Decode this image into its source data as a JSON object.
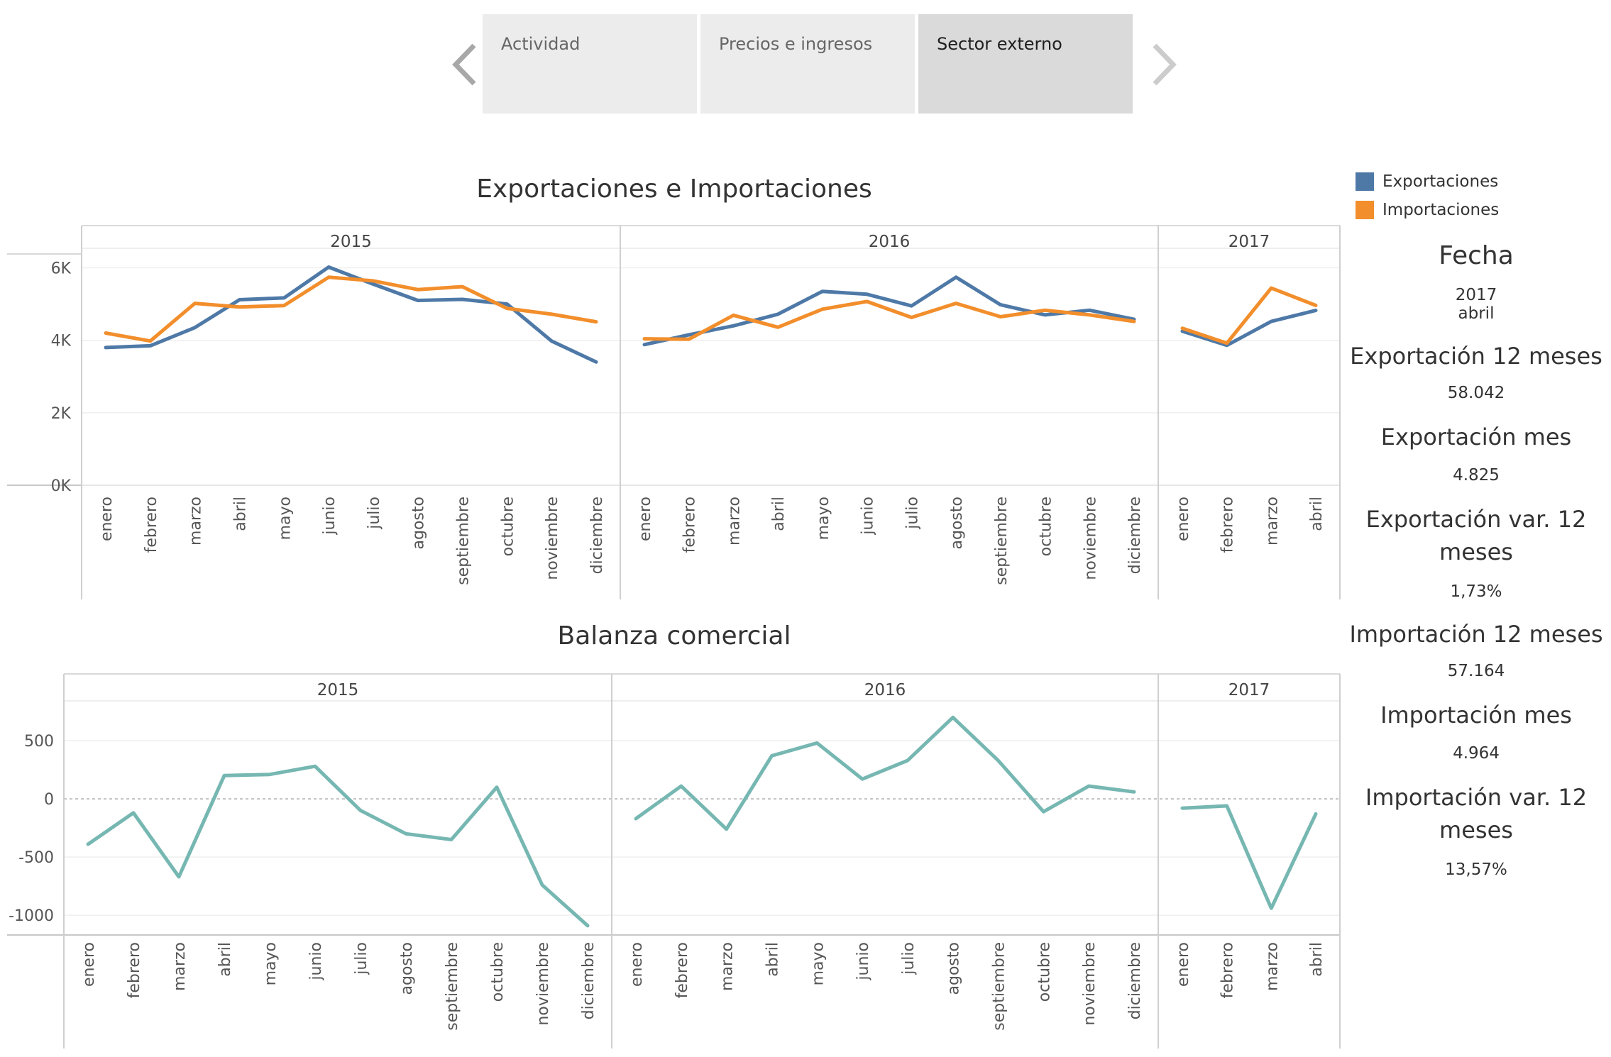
{
  "tabs": {
    "items": [
      {
        "label": "Actividad",
        "active": false
      },
      {
        "label": "Precios e ingresos",
        "active": false
      },
      {
        "label": "Sector externo",
        "active": true
      }
    ],
    "prev_icon": "chevron-left-icon",
    "next_icon": "chevron-right-icon"
  },
  "legend": {
    "items": [
      {
        "label": "Exportaciones",
        "color": "#4e79a7"
      },
      {
        "label": "Importaciones",
        "color": "#f28e2b"
      }
    ]
  },
  "side": {
    "fecha_title": "Fecha",
    "fecha_year": "2017",
    "fecha_month": "abril",
    "exp12_title": "Exportación 12 meses",
    "exp12_value": "58.042",
    "expmes_title": "Exportación mes",
    "expmes_value": "4.825",
    "expvar_title": "Exportación var. 12 meses",
    "expvar_value": "1,73%",
    "imp12_title": "Importación 12 meses",
    "imp12_value": "57.164",
    "impmes_title": "Importación mes",
    "impmes_value": "4.964",
    "impvar_title": "Importación var. 12 meses",
    "impvar_value": "13,57%"
  },
  "chart_data": [
    {
      "type": "line",
      "title": "Exportaciones e Importaciones",
      "panels": [
        {
          "year": "2015",
          "categories": [
            "enero",
            "febrero",
            "marzo",
            "abril",
            "mayo",
            "junio",
            "julio",
            "agosto",
            "septiembre",
            "octubre",
            "noviembre",
            "diciembre"
          ]
        },
        {
          "year": "2016",
          "categories": [
            "enero",
            "febrero",
            "marzo",
            "abril",
            "mayo",
            "junio",
            "julio",
            "agosto",
            "septiembre",
            "octubre",
            "noviembre",
            "diciembre"
          ]
        },
        {
          "year": "2017",
          "categories": [
            "enero",
            "febrero",
            "marzo",
            "abril"
          ]
        }
      ],
      "series": [
        {
          "name": "Exportaciones",
          "color": "#4e79a7",
          "values": [
            3800,
            3850,
            4350,
            5120,
            5170,
            6020,
            5550,
            5100,
            5130,
            5000,
            3980,
            3400,
            3880,
            4150,
            4400,
            4720,
            5350,
            5270,
            4950,
            5740,
            4980,
            4700,
            4830,
            4580,
            4250,
            3860,
            4520,
            4825
          ]
        },
        {
          "name": "Importaciones",
          "color": "#f28e2b",
          "values": [
            4200,
            3980,
            5020,
            4920,
            4960,
            5740,
            5640,
            5400,
            5480,
            4880,
            4720,
            4510,
            4040,
            4030,
            4690,
            4360,
            4860,
            5070,
            4630,
            5020,
            4650,
            4830,
            4700,
            4520,
            4330,
            3920,
            5440,
            4964
          ]
        }
      ],
      "ylabel": "",
      "ylim": [
        0,
        6500
      ],
      "yticks": [
        0,
        2000,
        4000,
        6000
      ],
      "ytick_labels": [
        "0K",
        "2K",
        "4K",
        "6K"
      ],
      "legend": "top-right",
      "grid": true
    },
    {
      "type": "line",
      "title": "Balanza comercial",
      "panels": [
        {
          "year": "2015",
          "categories": [
            "enero",
            "febrero",
            "marzo",
            "abril",
            "mayo",
            "junio",
            "julio",
            "agosto",
            "septiembre",
            "octubre",
            "noviembre",
            "diciembre"
          ]
        },
        {
          "year": "2016",
          "categories": [
            "enero",
            "febrero",
            "marzo",
            "abril",
            "mayo",
            "junio",
            "julio",
            "agosto",
            "septiembre",
            "octubre",
            "noviembre",
            "diciembre"
          ]
        },
        {
          "year": "2017",
          "categories": [
            "enero",
            "febrero",
            "marzo",
            "abril"
          ]
        }
      ],
      "series": [
        {
          "color": "#76b7b2",
          "values": [
            -390,
            -120,
            -670,
            200,
            210,
            280,
            -100,
            -300,
            -350,
            100,
            -740,
            -1090,
            -170,
            110,
            -260,
            370,
            480,
            170,
            330,
            700,
            330,
            -110,
            110,
            60,
            -80,
            -60,
            -940,
            -130
          ]
        }
      ],
      "ylim": [
        -1170,
        830
      ],
      "yticks": [
        500,
        0,
        -500,
        -1000
      ],
      "ytick_labels": [
        "500",
        "0",
        "-500",
        "-1000"
      ],
      "zero_line": true,
      "grid": true
    }
  ]
}
